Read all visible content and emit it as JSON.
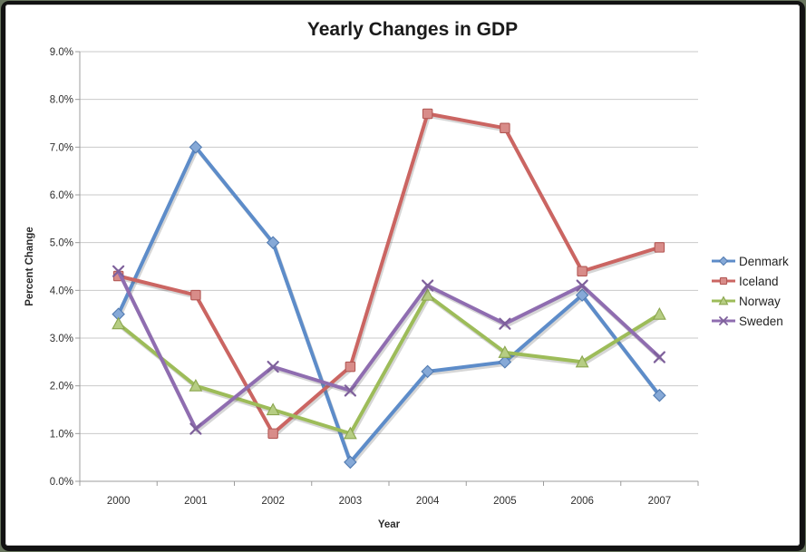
{
  "window": {
    "outer_background": "#68755e",
    "frame_color": "#121212",
    "canvas_background": "#ffffff"
  },
  "chart_data": {
    "type": "line",
    "title": "Yearly Changes in GDP",
    "xlabel": "Year",
    "ylabel": "Percent Change",
    "categories": [
      "2000",
      "2001",
      "2002",
      "2003",
      "2004",
      "2005",
      "2006",
      "2007"
    ],
    "y_tick_labels": [
      "0.0%",
      "1.0%",
      "2.0%",
      "3.0%",
      "4.0%",
      "5.0%",
      "6.0%",
      "7.0%",
      "8.0%",
      "9.0%"
    ],
    "ylim": [
      0,
      9
    ],
    "grid": true,
    "legend_position": "right",
    "grid_color": "#c9c9c9",
    "axis_color": "#9c9c9c",
    "tick_text_color": "#2f2f2f",
    "series": [
      {
        "name": "Denmark",
        "marker": "diamond",
        "color": "#5D8CC9",
        "values": [
          3.5,
          7.0,
          5.0,
          0.4,
          2.3,
          2.5,
          3.9,
          1.8
        ]
      },
      {
        "name": "Iceland",
        "marker": "square",
        "color": "#CB6562",
        "values": [
          4.3,
          3.9,
          1.0,
          2.4,
          7.7,
          7.4,
          4.4,
          4.9
        ]
      },
      {
        "name": "Norway",
        "marker": "triangle",
        "color": "#9DBC59",
        "values": [
          3.3,
          2.0,
          1.5,
          1.0,
          3.9,
          2.7,
          2.5,
          3.5
        ]
      },
      {
        "name": "Sweden",
        "marker": "x",
        "color": "#8F6DB0",
        "values": [
          4.4,
          1.1,
          2.4,
          1.9,
          4.1,
          3.3,
          4.1,
          2.6
        ]
      }
    ]
  }
}
